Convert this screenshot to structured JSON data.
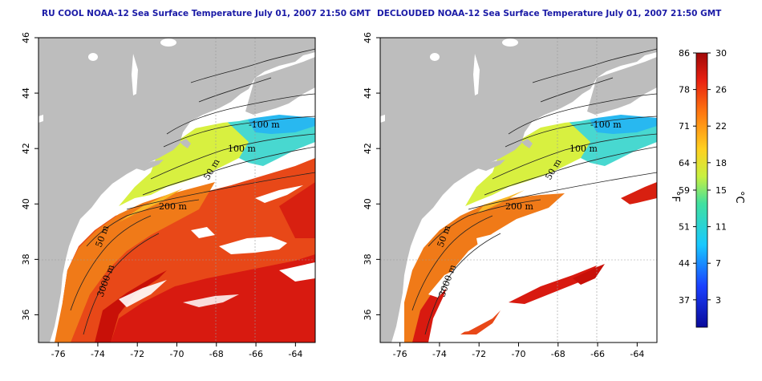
{
  "panels": [
    {
      "id": "rucool",
      "title": "RU COOL NOAA-12 Sea Surface Temperature July 01, 2007 21:50 GMT",
      "contour_labels": [
        "-100 m",
        "100 m",
        "50 m",
        "200 m",
        "50 m",
        "3000 m"
      ]
    },
    {
      "id": "declouded",
      "title": "DECLOUDED NOAA-12 Sea Surface Temperature July 01, 2007 21:50 GMT",
      "contour_labels": [
        "-100 m",
        "100 m",
        "50 m",
        "200 m",
        "50 m",
        "3000 m"
      ]
    }
  ],
  "axes": {
    "lon_ticks": [
      "-76",
      "-74",
      "-72",
      "-70",
      "-68",
      "-66",
      "-64"
    ],
    "lat_ticks": [
      "36",
      "38",
      "40",
      "42",
      "44",
      "46"
    ],
    "lon_range": [
      -77,
      -63
    ],
    "lat_range": [
      35,
      46
    ]
  },
  "colorbar": {
    "fahrenheit_ticks": [
      "86",
      "78",
      "71",
      "64",
      "59",
      "51",
      "44",
      "37"
    ],
    "celsius_ticks": [
      "30",
      "26",
      "22",
      "18",
      "15",
      "11",
      "7",
      "3"
    ],
    "fahrenheit_label": "°F",
    "celsius_label": "°C",
    "range_c": [
      0,
      30
    ]
  },
  "colors": {
    "land": "#bdbdbd",
    "title": "#1a1aa6",
    "warm": "#d01010",
    "cold": "#1018c0"
  }
}
